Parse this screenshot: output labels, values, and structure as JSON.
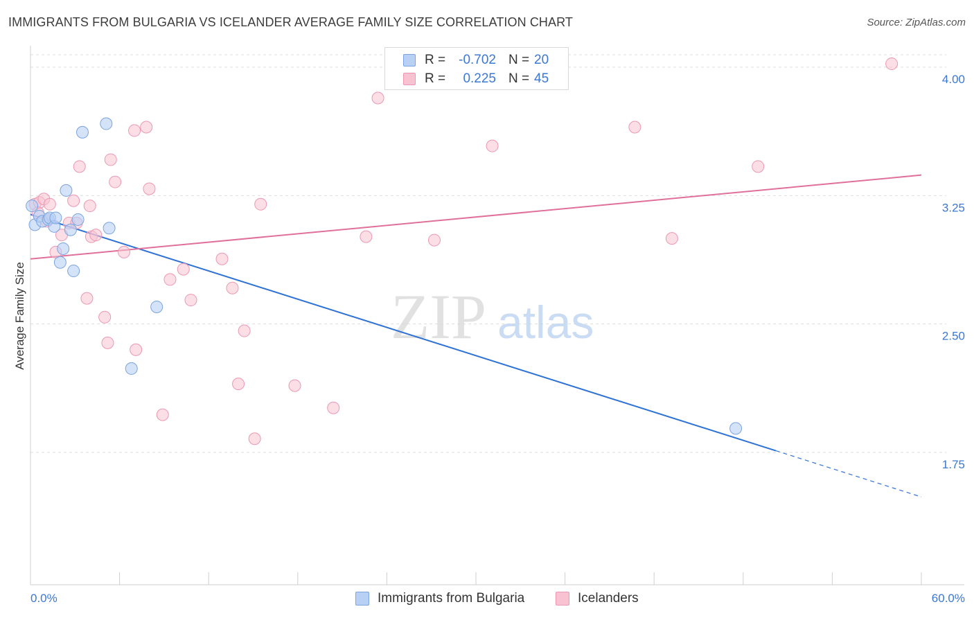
{
  "title": "IMMIGRANTS FROM BULGARIA VS ICELANDER AVERAGE FAMILY SIZE CORRELATION CHART",
  "source": "Source: ZipAtlas.com",
  "watermark": {
    "zip": "ZIP",
    "atlas": "atlas"
  },
  "legend_top": [
    {
      "r_label": "R =",
      "r_value": "-0.702",
      "n_label": "N =",
      "n_value": "20"
    },
    {
      "r_label": "R =",
      "r_value": "0.225",
      "n_label": "N =",
      "n_value": "45"
    }
  ],
  "legend_bottom": [
    {
      "label": "Immigrants from Bulgaria"
    },
    {
      "label": "Icelanders"
    }
  ],
  "colors": {
    "blue_fill": "#b8d0f4",
    "blue_stroke": "#7aa3e0",
    "blue_line": "#2f72d6",
    "pink_fill": "#f8c2d2",
    "pink_stroke": "#ec98b2",
    "pink_line": "#e0709a",
    "tick_label": "#3a78d4",
    "grid": "#dddddd"
  },
  "chart_data": {
    "type": "scatter",
    "title": "IMMIGRANTS FROM BULGARIA VS ICELANDER AVERAGE FAMILY SIZE CORRELATION CHART",
    "xlabel": "",
    "ylabel": "Average Family Size",
    "xlim": [
      0,
      60
    ],
    "ylim": [
      1.2,
      4.15
    ],
    "x_tick_labels": [
      "0.0%",
      "60.0%"
    ],
    "y_ticks": [
      1.75,
      2.5,
      3.25,
      4.0
    ],
    "y_tick_labels": [
      "1.75",
      "2.50",
      "3.25",
      "4.00"
    ],
    "grid": "horizontal dashed",
    "legend": "top-center and bottom",
    "series": [
      {
        "name": "Immigrants from Bulgaria",
        "r": -0.702,
        "n": 20,
        "points": [
          [
            0.1,
            3.19
          ],
          [
            0.3,
            3.08
          ],
          [
            0.6,
            3.13
          ],
          [
            0.8,
            3.1
          ],
          [
            1.2,
            3.11
          ],
          [
            1.3,
            3.12
          ],
          [
            1.6,
            3.07
          ],
          [
            1.7,
            3.12
          ],
          [
            2.0,
            2.86
          ],
          [
            2.2,
            2.94
          ],
          [
            2.4,
            3.28
          ],
          [
            2.7,
            3.05
          ],
          [
            2.9,
            2.81
          ],
          [
            3.2,
            3.11
          ],
          [
            3.5,
            3.62
          ],
          [
            5.1,
            3.67
          ],
          [
            5.3,
            3.06
          ],
          [
            8.5,
            2.6
          ],
          [
            6.8,
            2.24
          ],
          [
            47.5,
            1.89
          ]
        ],
        "trend": {
          "x0": 0,
          "y0": 3.14,
          "x1": 50.2,
          "y1": 1.76,
          "dashed_to": {
            "x": 60,
            "y": 1.49
          }
        }
      },
      {
        "name": "Icelanders",
        "r": 0.225,
        "n": 45,
        "points": [
          [
            0.3,
            3.2
          ],
          [
            0.6,
            3.21
          ],
          [
            0.9,
            3.23
          ],
          [
            1.1,
            3.1
          ],
          [
            1.3,
            3.2
          ],
          [
            1.7,
            2.92
          ],
          [
            2.1,
            3.02
          ],
          [
            2.6,
            3.09
          ],
          [
            2.9,
            3.22
          ],
          [
            3.1,
            3.09
          ],
          [
            3.3,
            3.42
          ],
          [
            3.8,
            2.65
          ],
          [
            4.0,
            3.19
          ],
          [
            4.1,
            3.01
          ],
          [
            4.4,
            3.02
          ],
          [
            5.0,
            2.54
          ],
          [
            5.2,
            2.39
          ],
          [
            5.4,
            3.46
          ],
          [
            5.7,
            3.33
          ],
          [
            6.3,
            2.92
          ],
          [
            7.1,
            2.35
          ],
          [
            7.0,
            3.63
          ],
          [
            7.8,
            3.65
          ],
          [
            8.0,
            3.29
          ],
          [
            8.9,
            1.97
          ],
          [
            9.4,
            2.76
          ],
          [
            10.3,
            2.82
          ],
          [
            10.8,
            2.64
          ],
          [
            12.9,
            2.88
          ],
          [
            13.6,
            2.71
          ],
          [
            14.0,
            2.15
          ],
          [
            14.4,
            2.46
          ],
          [
            15.1,
            1.83
          ],
          [
            15.5,
            3.2
          ],
          [
            17.8,
            2.14
          ],
          [
            20.4,
            2.01
          ],
          [
            22.6,
            3.01
          ],
          [
            23.4,
            3.82
          ],
          [
            27.2,
            2.99
          ],
          [
            31.1,
            3.54
          ],
          [
            40.7,
            3.65
          ],
          [
            43.2,
            3.0
          ],
          [
            49.0,
            3.42
          ],
          [
            58.0,
            4.02
          ],
          [
            0.5,
            3.15
          ]
        ],
        "trend": {
          "x0": 0,
          "y0": 2.88,
          "x1": 60,
          "y1": 3.37
        }
      }
    ]
  }
}
